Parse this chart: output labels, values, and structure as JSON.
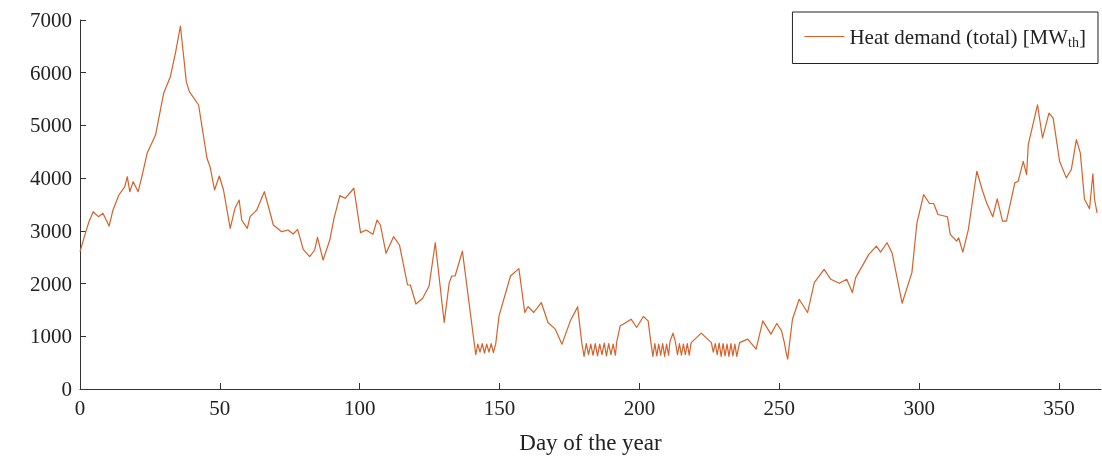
{
  "chart_data": {
    "type": "line",
    "xlabel": "Day of the year",
    "xlim": [
      0,
      365
    ],
    "xticks": [
      0,
      50,
      100,
      150,
      200,
      250,
      300,
      350
    ],
    "ylim": [
      0,
      7000
    ],
    "yticks": [
      0,
      1000,
      2000,
      3000,
      4000,
      5000,
      6000,
      7000
    ],
    "grid": false,
    "legend": "top right",
    "marker": "none",
    "line_style": "solid",
    "series": [
      {
        "name": "Heat demand (total) [MW$_{th}$]",
        "color": "#d4622a",
        "x": [
          0,
          2.1,
          3.2,
          4.7,
          6.6,
          8.2,
          10.4,
          11.8,
          13.9,
          16.0,
          16.9,
          17.8,
          19.0,
          20.8,
          22.2,
          24.0,
          27.0,
          29.9,
          32.3,
          34.1,
          35.9,
          38.0,
          39.1,
          42.4,
          45.4,
          46.5,
          48.1,
          49.8,
          51.3,
          53.7,
          55.4,
          56.9,
          57.8,
          59.8,
          60.8,
          63.2,
          65.9,
          67.7,
          69.1,
          72.1,
          74.4,
          76.2,
          77.8,
          79.8,
          82.1,
          83.9,
          84.9,
          86.9,
          89.3,
          90.8,
          92.9,
          94.8,
          97.9,
          100.3,
          102.3,
          104.7,
          106.2,
          107.4,
          109.4,
          112.1,
          114.2,
          117.1,
          118.1,
          120.1,
          122.5,
          124.8,
          127.0,
          130.2,
          132.0,
          132.9,
          134.1,
          136.7,
          140.9,
          141.5,
          142.2,
          143.0,
          143.8,
          144.6,
          145.4,
          146.2,
          147.0,
          147.8,
          148.6,
          149.8,
          153.9,
          156.9,
          159.0,
          160.2,
          162.2,
          164.9,
          167.3,
          169.9,
          172.3,
          175.3,
          177.9,
          179.4,
          180.2,
          181.0,
          181.8,
          182.6,
          183.4,
          184.2,
          185.0,
          185.8,
          186.6,
          187.4,
          188.2,
          189.0,
          189.8,
          190.6,
          191.4,
          191.9,
          193.1,
          194.2,
          197.0,
          199.0,
          201.4,
          203.1,
          204.1,
          204.8,
          205.5,
          206.2,
          206.9,
          207.6,
          208.3,
          209.0,
          209.7,
          210.4,
          210.9,
          212.0,
          212.9,
          213.6,
          214.3,
          215.0,
          215.7,
          216.4,
          217.1,
          217.8,
          218.5,
          222.1,
          225.7,
          226.4,
          227.1,
          227.8,
          228.5,
          229.2,
          229.9,
          230.6,
          231.3,
          232.0,
          232.7,
          233.4,
          234.1,
          234.8,
          235.8,
          238.7,
          241.7,
          244.1,
          247.0,
          249.1,
          250.8,
          251.8,
          252.4,
          253.0,
          253.5,
          254.7,
          257.1,
          260.1,
          262.5,
          266.0,
          268.4,
          271.4,
          274.1,
          276.1,
          277.3,
          282.0,
          284.7,
          286.2,
          288.5,
          290.3,
          293.9,
          297.4,
          299.2,
          301.6,
          303.7,
          305.2,
          306.7,
          310.1,
          311.1,
          313.4,
          314.1,
          315.6,
          317.6,
          320.6,
          322.7,
          324.1,
          326.3,
          327.9,
          329.8,
          331.2,
          334.2,
          335.4,
          337.2,
          338.4,
          339.0,
          342.3,
          344.1,
          346.4,
          347.9,
          350.2,
          352.6,
          354.4,
          356.2,
          357.6,
          359.1,
          360.9,
          362.1,
          362.7,
          363.6
        ],
        "values": [
          2605,
          2984,
          3174,
          3363,
          3269,
          3332,
          3092,
          3396,
          3680,
          3838,
          4027,
          3743,
          3933,
          3743,
          4046,
          4471,
          4818,
          5609,
          5925,
          6368,
          6886,
          5830,
          5640,
          5387,
          4376,
          4217,
          3775,
          4040,
          3775,
          3048,
          3428,
          3585,
          3206,
          3048,
          3269,
          3396,
          3743,
          3396,
          3111,
          2984,
          3016,
          2940,
          3029,
          2650,
          2510,
          2637,
          2877,
          2447,
          2826,
          3238,
          3668,
          3618,
          3808,
          2966,
          3016,
          2934,
          3206,
          3111,
          2573,
          2890,
          2732,
          1973,
          1973,
          1612,
          1720,
          1955,
          2775,
          1261,
          2018,
          2144,
          2144,
          2617,
          883,
          650,
          850,
          700,
          860,
          680,
          850,
          700,
          860,
          690,
          850,
          1387,
          2144,
          2283,
          1451,
          1564,
          1451,
          1640,
          1261,
          1135,
          851,
          1293,
          1558,
          870,
          620,
          860,
          650,
          850,
          640,
          860,
          630,
          850,
          650,
          870,
          630,
          860,
          650,
          850,
          640,
          900,
          1198,
          1230,
          1324,
          1167,
          1375,
          1293,
          880,
          620,
          860,
          630,
          850,
          640,
          860,
          620,
          850,
          640,
          900,
          1060,
          880,
          650,
          860,
          640,
          850,
          650,
          860,
          640,
          880,
          1060,
          880,
          700,
          860,
          650,
          870,
          620,
          860,
          630,
          850,
          620,
          860,
          630,
          850,
          620,
          880,
          946,
          757,
          1293,
          1041,
          1243,
          1104,
          880,
          700,
          568,
          800,
          1324,
          1703,
          1451,
          2018,
          2270,
          2081,
          2005,
          2081,
          1829,
          2113,
          2554,
          2712,
          2598,
          2775,
          2586,
          1627,
          2207,
          3153,
          3689,
          3519,
          3519,
          3311,
          3268,
          2933,
          2806,
          2869,
          2598,
          3027,
          4131,
          3752,
          3532,
          3268,
          3607,
          3185,
          3185,
          3910,
          3942,
          4320,
          4068,
          4635,
          5392,
          4762,
          5235,
          5140,
          4320,
          4005,
          4163,
          4730,
          4480,
          3600,
          3420,
          4080,
          3595,
          3343
        ]
      }
    ]
  }
}
